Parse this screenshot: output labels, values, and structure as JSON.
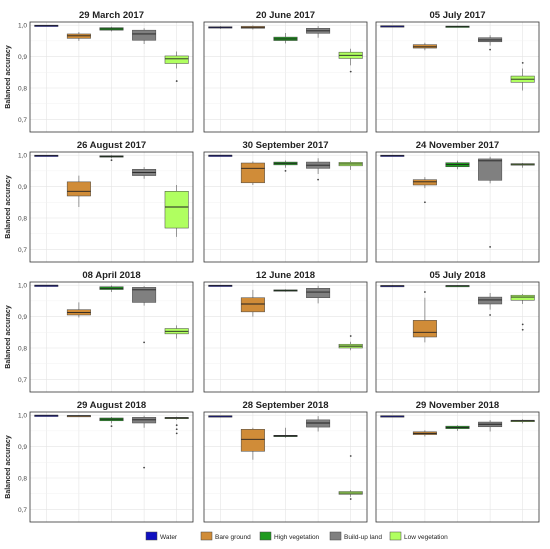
{
  "ylabel": "Balanced accuracy",
  "yticks": [
    "0,7",
    "0,8",
    "0,9",
    "1,0"
  ],
  "classes": [
    {
      "name": "Water",
      "color": "#1010c0"
    },
    {
      "name": "Bare ground",
      "color": "#d08c38"
    },
    {
      "name": "High vegetation",
      "color": "#1e9a1e"
    },
    {
      "name": "Build-up land",
      "color": "#808080"
    },
    {
      "name": "Low vegetation",
      "color": "#b0ff60"
    }
  ],
  "chart_data": [
    {
      "type": "box",
      "title": "29 March 2017",
      "ylim": [
        0.66,
        1.01
      ],
      "boxes": [
        {
          "class": "Water",
          "q1": 0.998,
          "median": 0.999,
          "q3": 1.0,
          "whisker_low": 0.997,
          "whisker_high": 1.0,
          "outliers": []
        },
        {
          "class": "Bare ground",
          "q1": 0.958,
          "median": 0.966,
          "q3": 0.972,
          "whisker_low": 0.95,
          "whisker_high": 0.978,
          "outliers": []
        },
        {
          "class": "High vegetation",
          "q1": 0.984,
          "median": 0.988,
          "q3": 0.992,
          "whisker_low": 0.98,
          "whisker_high": 0.995,
          "outliers": []
        },
        {
          "class": "Build-up land",
          "q1": 0.952,
          "median": 0.972,
          "q3": 0.984,
          "whisker_low": 0.94,
          "whisker_high": 0.99,
          "outliers": []
        },
        {
          "class": "Low vegetation",
          "q1": 0.878,
          "median": 0.893,
          "q3": 0.902,
          "whisker_low": 0.862,
          "whisker_high": 0.916,
          "outliers": [
            0.822
          ]
        }
      ]
    },
    {
      "type": "box",
      "title": "20 June 2017",
      "ylim": [
        0.66,
        1.01
      ],
      "boxes": [
        {
          "class": "Water",
          "q1": 0.991,
          "median": 0.993,
          "q3": 0.995,
          "whisker_low": 0.988,
          "whisker_high": 0.997,
          "outliers": []
        },
        {
          "class": "Bare ground",
          "q1": 0.99,
          "median": 0.993,
          "q3": 0.996,
          "whisker_low": 0.986,
          "whisker_high": 0.999,
          "outliers": []
        },
        {
          "class": "High vegetation",
          "q1": 0.951,
          "median": 0.956,
          "q3": 0.962,
          "whisker_low": 0.942,
          "whisker_high": 0.975,
          "outliers": []
        },
        {
          "class": "Build-up land",
          "q1": 0.974,
          "median": 0.982,
          "q3": 0.99,
          "whisker_low": 0.96,
          "whisker_high": 0.997,
          "outliers": []
        },
        {
          "class": "Low vegetation",
          "q1": 0.894,
          "median": 0.904,
          "q3": 0.914,
          "whisker_low": 0.872,
          "whisker_high": 0.925,
          "outliers": [
            0.852
          ]
        }
      ]
    },
    {
      "type": "box",
      "title": "05 July 2017",
      "ylim": [
        0.66,
        1.01
      ],
      "boxes": [
        {
          "class": "Water",
          "q1": 0.996,
          "median": 0.997,
          "q3": 0.998,
          "whisker_low": 0.994,
          "whisker_high": 0.999,
          "outliers": []
        },
        {
          "class": "Bare ground",
          "q1": 0.927,
          "median": 0.931,
          "q3": 0.938,
          "whisker_low": 0.92,
          "whisker_high": 0.944,
          "outliers": []
        },
        {
          "class": "High vegetation",
          "q1": 0.995,
          "median": 0.996,
          "q3": 0.997,
          "whisker_low": 0.994,
          "whisker_high": 0.998,
          "outliers": []
        },
        {
          "class": "Build-up land",
          "q1": 0.947,
          "median": 0.953,
          "q3": 0.96,
          "whisker_low": 0.935,
          "whisker_high": 0.968,
          "outliers": [
            0.922
          ]
        },
        {
          "class": "Low vegetation",
          "q1": 0.818,
          "median": 0.828,
          "q3": 0.838,
          "whisker_low": 0.792,
          "whisker_high": 0.862,
          "outliers": [
            0.88
          ]
        }
      ]
    },
    {
      "type": "box",
      "title": "26 August 2017",
      "ylim": [
        0.66,
        1.01
      ],
      "boxes": [
        {
          "class": "Water",
          "q1": 0.998,
          "median": 0.999,
          "q3": 1.0,
          "whisker_low": 0.997,
          "whisker_high": 1.0,
          "outliers": []
        },
        {
          "class": "Bare ground",
          "q1": 0.87,
          "median": 0.885,
          "q3": 0.915,
          "whisker_low": 0.835,
          "whisker_high": 0.935,
          "outliers": []
        },
        {
          "class": "High vegetation",
          "q1": 0.994,
          "median": 0.996,
          "q3": 0.998,
          "whisker_low": 0.99,
          "whisker_high": 1.0,
          "outliers": [
            0.984
          ]
        },
        {
          "class": "Build-up land",
          "q1": 0.935,
          "median": 0.945,
          "q3": 0.955,
          "whisker_low": 0.925,
          "whisker_high": 0.962,
          "outliers": []
        },
        {
          "class": "Low vegetation",
          "q1": 0.768,
          "median": 0.835,
          "q3": 0.885,
          "whisker_low": 0.74,
          "whisker_high": 0.905,
          "outliers": []
        }
      ]
    },
    {
      "type": "box",
      "title": "30 September 2017",
      "ylim": [
        0.66,
        1.01
      ],
      "boxes": [
        {
          "class": "Water",
          "q1": 0.999,
          "median": 0.9995,
          "q3": 1.0,
          "whisker_low": 0.998,
          "whisker_high": 1.0,
          "outliers": []
        },
        {
          "class": "Bare ground",
          "q1": 0.912,
          "median": 0.958,
          "q3": 0.975,
          "whisker_low": 0.905,
          "whisker_high": 0.98,
          "outliers": []
        },
        {
          "class": "High vegetation",
          "q1": 0.969,
          "median": 0.974,
          "q3": 0.978,
          "whisker_low": 0.96,
          "whisker_high": 0.983,
          "outliers": [
            0.95
          ]
        },
        {
          "class": "Build-up land",
          "q1": 0.958,
          "median": 0.968,
          "q3": 0.978,
          "whisker_low": 0.94,
          "whisker_high": 0.99,
          "outliers": [
            0.922
          ]
        },
        {
          "class": "Low vegetation",
          "q1": 0.966,
          "median": 0.972,
          "q3": 0.977,
          "whisker_low": 0.953,
          "whisker_high": 0.982,
          "outliers": []
        }
      ]
    },
    {
      "type": "box",
      "title": "24 November 2017",
      "ylim": [
        0.66,
        1.01
      ],
      "boxes": [
        {
          "class": "Water",
          "q1": 0.998,
          "median": 0.999,
          "q3": 1.0,
          "whisker_low": 0.997,
          "whisker_high": 1.0,
          "outliers": []
        },
        {
          "class": "Bare ground",
          "q1": 0.905,
          "median": 0.915,
          "q3": 0.922,
          "whisker_low": 0.895,
          "whisker_high": 0.93,
          "outliers": [
            0.85
          ]
        },
        {
          "class": "High vegetation",
          "q1": 0.963,
          "median": 0.97,
          "q3": 0.976,
          "whisker_low": 0.955,
          "whisker_high": 0.982,
          "outliers": []
        },
        {
          "class": "Build-up land",
          "q1": 0.92,
          "median": 0.982,
          "q3": 0.988,
          "whisker_low": 0.91,
          "whisker_high": 0.995,
          "outliers": [
            0.708
          ]
        },
        {
          "class": "Low vegetation",
          "q1": 0.968,
          "median": 0.971,
          "q3": 0.973,
          "whisker_low": 0.96,
          "whisker_high": 0.975,
          "outliers": []
        }
      ]
    },
    {
      "type": "box",
      "title": "08 April 2018",
      "ylim": [
        0.66,
        1.01
      ],
      "boxes": [
        {
          "class": "Water",
          "q1": 0.999,
          "median": 0.9995,
          "q3": 1.0,
          "whisker_low": 0.998,
          "whisker_high": 1.0,
          "outliers": []
        },
        {
          "class": "Bare ground",
          "q1": 0.905,
          "median": 0.913,
          "q3": 0.922,
          "whisker_low": 0.897,
          "whisker_high": 0.945,
          "outliers": []
        },
        {
          "class": "High vegetation",
          "q1": 0.986,
          "median": 0.99,
          "q3": 0.995,
          "whisker_low": 0.978,
          "whisker_high": 0.999,
          "outliers": []
        },
        {
          "class": "Build-up land",
          "q1": 0.945,
          "median": 0.985,
          "q3": 0.993,
          "whisker_low": 0.935,
          "whisker_high": 0.997,
          "outliers": [
            0.818
          ]
        },
        {
          "class": "Low vegetation",
          "q1": 0.845,
          "median": 0.853,
          "q3": 0.862,
          "whisker_low": 0.83,
          "whisker_high": 0.872,
          "outliers": []
        }
      ]
    },
    {
      "type": "box",
      "title": "12 June 2018",
      "ylim": [
        0.66,
        1.01
      ],
      "boxes": [
        {
          "class": "Water",
          "q1": 0.998,
          "median": 0.999,
          "q3": 1.0,
          "whisker_low": 0.997,
          "whisker_high": 1.0,
          "outliers": []
        },
        {
          "class": "Bare ground",
          "q1": 0.915,
          "median": 0.94,
          "q3": 0.96,
          "whisker_low": 0.9,
          "whisker_high": 0.985,
          "outliers": []
        },
        {
          "class": "High vegetation",
          "q1": 0.981,
          "median": 0.983,
          "q3": 0.985,
          "whisker_low": 0.979,
          "whisker_high": 0.987,
          "outliers": []
        },
        {
          "class": "Build-up land",
          "q1": 0.96,
          "median": 0.978,
          "q3": 0.99,
          "whisker_low": 0.942,
          "whisker_high": 0.998,
          "outliers": []
        },
        {
          "class": "Low vegetation",
          "q1": 0.8,
          "median": 0.806,
          "q3": 0.812,
          "whisker_low": 0.793,
          "whisker_high": 0.82,
          "outliers": [
            0.838
          ]
        }
      ]
    },
    {
      "type": "box",
      "title": "05 July 2018",
      "ylim": [
        0.66,
        1.01
      ],
      "boxes": [
        {
          "class": "Water",
          "q1": 0.997,
          "median": 0.998,
          "q3": 0.999,
          "whisker_low": 0.995,
          "whisker_high": 1.0,
          "outliers": []
        },
        {
          "class": "Bare ground",
          "q1": 0.835,
          "median": 0.85,
          "q3": 0.888,
          "whisker_low": 0.818,
          "whisker_high": 0.96,
          "outliers": [
            0.978
          ]
        },
        {
          "class": "High vegetation",
          "q1": 0.997,
          "median": 0.998,
          "q3": 0.999,
          "whisker_low": 0.995,
          "whisker_high": 1.0,
          "outliers": []
        },
        {
          "class": "Build-up land",
          "q1": 0.94,
          "median": 0.953,
          "q3": 0.962,
          "whisker_low": 0.922,
          "whisker_high": 0.975,
          "outliers": [
            0.905
          ]
        },
        {
          "class": "Low vegetation",
          "q1": 0.952,
          "median": 0.962,
          "q3": 0.968,
          "whisker_low": 0.94,
          "whisker_high": 0.972,
          "outliers": [
            0.875,
            0.858
          ]
        }
      ]
    },
    {
      "type": "box",
      "title": "29 August 2018",
      "ylim": [
        0.66,
        1.01
      ],
      "boxes": [
        {
          "class": "Water",
          "q1": 0.999,
          "median": 0.9995,
          "q3": 1.0,
          "whisker_low": 0.998,
          "whisker_high": 1.0,
          "outliers": []
        },
        {
          "class": "Bare ground",
          "q1": 0.997,
          "median": 0.998,
          "q3": 0.999,
          "whisker_low": 0.994,
          "whisker_high": 1.0,
          "outliers": []
        },
        {
          "class": "High vegetation",
          "q1": 0.982,
          "median": 0.987,
          "q3": 0.991,
          "whisker_low": 0.974,
          "whisker_high": 0.994,
          "outliers": [
            0.965
          ]
        },
        {
          "class": "Build-up land",
          "q1": 0.975,
          "median": 0.985,
          "q3": 0.993,
          "whisker_low": 0.96,
          "whisker_high": 0.998,
          "outliers": [
            0.833
          ]
        },
        {
          "class": "Low vegetation",
          "q1": 0.989,
          "median": 0.991,
          "q3": 0.993,
          "whisker_low": 0.985,
          "whisker_high": 0.995,
          "outliers": [
            0.968,
            0.955,
            0.942
          ]
        }
      ]
    },
    {
      "type": "box",
      "title": "28 September 2018",
      "ylim": [
        0.66,
        1.01
      ],
      "boxes": [
        {
          "class": "Water",
          "q1": 0.995,
          "median": 0.997,
          "q3": 0.998,
          "whisker_low": 0.993,
          "whisker_high": 0.999,
          "outliers": []
        },
        {
          "class": "Bare ground",
          "q1": 0.885,
          "median": 0.923,
          "q3": 0.955,
          "whisker_low": 0.858,
          "whisker_high": 0.96,
          "outliers": []
        },
        {
          "class": "High vegetation",
          "q1": 0.932,
          "median": 0.934,
          "q3": 0.936,
          "whisker_low": 0.928,
          "whisker_high": 0.96,
          "outliers": []
        },
        {
          "class": "Build-up land",
          "q1": 0.962,
          "median": 0.975,
          "q3": 0.985,
          "whisker_low": 0.948,
          "whisker_high": 0.997,
          "outliers": []
        },
        {
          "class": "Low vegetation",
          "q1": 0.748,
          "median": 0.752,
          "q3": 0.757,
          "whisker_low": 0.74,
          "whisker_high": 0.762,
          "outliers": [
            0.87,
            0.733
          ]
        }
      ]
    },
    {
      "type": "box",
      "title": "29 November 2018",
      "ylim": [
        0.66,
        1.01
      ],
      "boxes": [
        {
          "class": "Water",
          "q1": 0.996,
          "median": 0.997,
          "q3": 0.998,
          "whisker_low": 0.995,
          "whisker_high": 0.999,
          "outliers": []
        },
        {
          "class": "Bare ground",
          "q1": 0.938,
          "median": 0.942,
          "q3": 0.947,
          "whisker_low": 0.932,
          "whisker_high": 0.952,
          "outliers": []
        },
        {
          "class": "High vegetation",
          "q1": 0.957,
          "median": 0.961,
          "q3": 0.965,
          "whisker_low": 0.95,
          "whisker_high": 0.968,
          "outliers": []
        },
        {
          "class": "Build-up land",
          "q1": 0.963,
          "median": 0.971,
          "q3": 0.978,
          "whisker_low": 0.948,
          "whisker_high": 0.984,
          "outliers": []
        },
        {
          "class": "Low vegetation",
          "q1": 0.979,
          "median": 0.982,
          "q3": 0.984,
          "whisker_low": 0.974,
          "whisker_high": 0.987,
          "outliers": []
        }
      ]
    }
  ]
}
